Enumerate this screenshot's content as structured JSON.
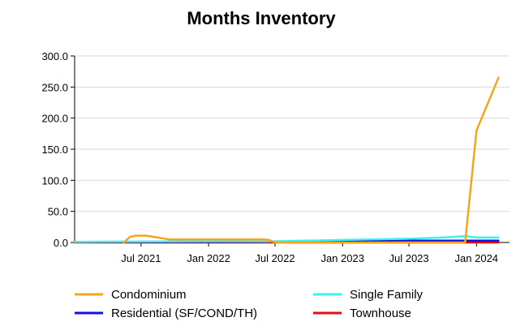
{
  "chart_data": {
    "type": "line",
    "title": "Months Inventory",
    "xlabel": "",
    "ylabel": "",
    "ylim": [
      0,
      300
    ],
    "y_ticks": [
      "300.0",
      "250.0",
      "200.0",
      "150.0",
      "100.0",
      "50.0",
      "0.0"
    ],
    "y_tick_values": [
      300,
      250,
      200,
      150,
      100,
      50,
      0
    ],
    "x_range": [
      "2021-01-01",
      "2024-03-31"
    ],
    "x_ticks": [
      "Jul 2021",
      "Jan 2022",
      "Jul 2022",
      "Jan 2023",
      "Jul 2023",
      "Jan 2024"
    ],
    "x_tick_dates": [
      "2021-07-01",
      "2022-01-01",
      "2022-07-01",
      "2023-01-01",
      "2023-07-01",
      "2024-01-01"
    ],
    "grid": true,
    "legend_position": "bottom",
    "series": [
      {
        "name": "Condominium",
        "color": "#F7A41D",
        "points": [
          {
            "x": "2021-05-15",
            "y": 0
          },
          {
            "x": "2021-06-01",
            "y": 9
          },
          {
            "x": "2021-06-15",
            "y": 11
          },
          {
            "x": "2021-07-15",
            "y": 11
          },
          {
            "x": "2021-08-15",
            "y": 8
          },
          {
            "x": "2021-09-15",
            "y": 5
          },
          {
            "x": "2022-01-15",
            "y": 5
          },
          {
            "x": "2022-06-01",
            "y": 5
          },
          {
            "x": "2022-06-15",
            "y": 4
          },
          {
            "x": "2022-07-01",
            "y": 0
          },
          {
            "x": "2023-12-01",
            "y": 0
          },
          {
            "x": "2024-01-01",
            "y": 180
          },
          {
            "x": "2024-03-01",
            "y": 265
          }
        ]
      },
      {
        "name": "Single Family",
        "color": "#3FF0F0",
        "points": [
          {
            "x": "2021-01-01",
            "y": 1
          },
          {
            "x": "2022-01-01",
            "y": 2
          },
          {
            "x": "2022-07-01",
            "y": 2
          },
          {
            "x": "2023-01-01",
            "y": 4
          },
          {
            "x": "2023-07-01",
            "y": 6
          },
          {
            "x": "2023-10-01",
            "y": 8
          },
          {
            "x": "2023-12-01",
            "y": 10
          },
          {
            "x": "2024-01-01",
            "y": 8
          },
          {
            "x": "2024-03-01",
            "y": 8
          }
        ]
      },
      {
        "name": "Residential (SF/COND/TH)",
        "color": "#1010E0",
        "points": [
          {
            "x": "2021-01-01",
            "y": 1
          },
          {
            "x": "2022-01-01",
            "y": 1
          },
          {
            "x": "2023-01-01",
            "y": 2
          },
          {
            "x": "2023-07-01",
            "y": 3
          },
          {
            "x": "2024-03-01",
            "y": 3
          }
        ]
      },
      {
        "name": "Townhouse",
        "color": "#E01010",
        "points": [
          {
            "x": "2021-01-01",
            "y": 0
          },
          {
            "x": "2024-03-01",
            "y": 0
          }
        ]
      }
    ]
  }
}
